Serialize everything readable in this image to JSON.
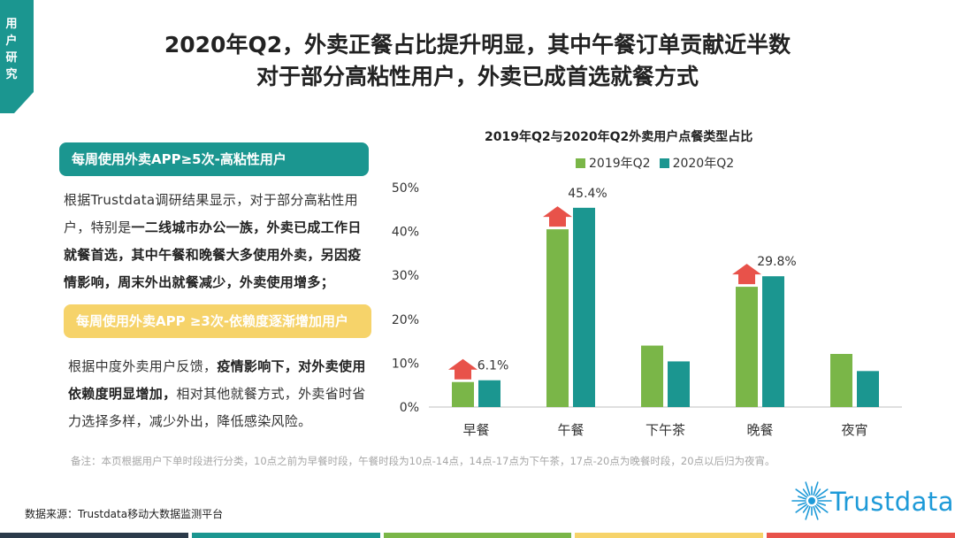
{
  "corner_tab": {
    "label": "用户研究",
    "color": "#1b9690"
  },
  "title": {
    "line1": "2020年Q2，外卖正餐占比提升明显，其中午餐订单贡献近半数",
    "line2": "对于部分高粘性用户，外卖已成首选就餐方式"
  },
  "left_panel": {
    "pill1": "每周使用外卖APP≥5次-高粘性用户",
    "para1": [
      {
        "text": "根据Trustdata调研结果显示，对于部分高粘性用户，特别是",
        "bold": false
      },
      {
        "text": "一二线城市办公一族，外卖已成工作日就餐首选，其中午餐和晚餐大多使用外卖，另因疫情影响，周末外出就餐减少，外卖使用增多；",
        "bold": true
      }
    ],
    "pill2": "每周使用外卖APP ≥3次-依赖度逐渐增加用户",
    "para2": [
      {
        "text": "根据中度外卖用户反馈，",
        "bold": false
      },
      {
        "text": "疫情影响下，对外卖使用依赖度明显增加，",
        "bold": true
      },
      {
        "text": "相对其他就餐方式，外卖省时省力选择多样，减少外出，降低感染风险。",
        "bold": false
      }
    ]
  },
  "chart_data": {
    "type": "bar",
    "title": "2019年Q2与2020年Q2外卖用户点餐类型占比",
    "categories": [
      "早餐",
      "午餐",
      "下午茶",
      "晚餐",
      "夜宵"
    ],
    "series": [
      {
        "name": "2019年Q2",
        "color": "#7ab648",
        "values": [
          5.7,
          40.5,
          14.0,
          27.4,
          12.1
        ]
      },
      {
        "name": "2020年Q2",
        "color": "#1b9690",
        "values": [
          6.1,
          45.4,
          10.4,
          29.8,
          8.2
        ]
      }
    ],
    "data_labels": [
      "6.1%",
      "45.4%",
      "",
      "29.8%",
      ""
    ],
    "increase_arrows": [
      true,
      true,
      false,
      true,
      false
    ],
    "arrow_color": "#e8524a",
    "yticks": [
      "0%",
      "10%",
      "20%",
      "30%",
      "40%",
      "50%"
    ],
    "ylim": [
      0,
      50
    ],
    "legend_position": "top",
    "grid": false
  },
  "note": "备注：本页根据用户下单时段进行分类，10点之前为早餐时段，午餐时段为10点-14点，14点-17点为下午茶，17点-20点为晚餐时段，20点以后归为夜宵。",
  "source": "数据来源：Trustdata移动大数据监测平台",
  "logo": {
    "text": "Trustdata",
    "color": "#1e9ad8"
  },
  "bottom_bar_colors": [
    "#2b3a4a",
    "#1b9690",
    "#7ab648",
    "#f6d36a",
    "#e8524a"
  ]
}
